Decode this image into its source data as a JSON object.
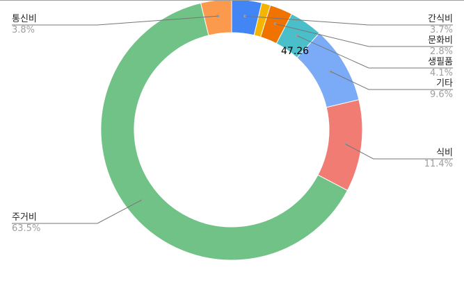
{
  "chart_data": {
    "type": "pie",
    "style": "donut",
    "title": "",
    "categories": [
      "통신비",
      "간식비",
      "문화비",
      "생필품",
      "기타",
      "식비",
      "주거비"
    ],
    "values": [
      3.8,
      3.7,
      2.8,
      4.1,
      9.6,
      11.4,
      63.5
    ],
    "percent_labels": [
      "3.8%",
      "3.7%",
      "2.8%",
      "4.1%",
      "9.6%",
      "11.4%",
      "63.5%"
    ],
    "colors": [
      "#fb9a4c",
      "#4285f4",
      "#f07300",
      "#4bbfc9",
      "#7baaf7",
      "#f17c74",
      "#71c287"
    ],
    "extra_slice": {
      "value": 1.1,
      "color": "#f4b400"
    },
    "center_label": "47.26",
    "legend": "none"
  }
}
